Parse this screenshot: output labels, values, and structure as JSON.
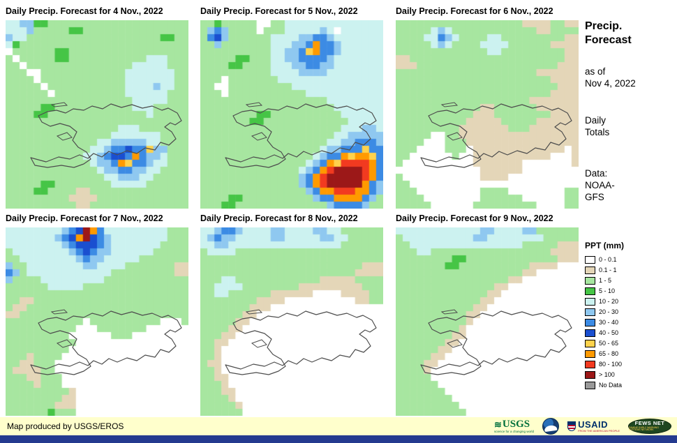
{
  "palette": {
    ".": "#FFFFFF",
    "t": "#E4D6B8",
    "g": "#A7E6A0",
    "G": "#46C546",
    "c": "#CCF2F0",
    "b": "#8FC8F0",
    "B": "#3C8BE4",
    "D": "#1A4FD0",
    "y": "#FFD24C",
    "o": "#FF9A00",
    "r": "#F23A20",
    "R": "#9C1818",
    "n": "#999999"
  },
  "panels": [
    {
      "title": "Daily Precip. Forecast for 4 Nov., 2022",
      "grid": [
        "ccbbGGgggggggggggggggggggg",
        "cccbgggggGGggggggggggggggg",
        "bccgggggggggggggggggggGGgg",
        "cGgggggggggggggggggggggggg",
        ".ggggggGGggggggggggggggggg",
        "g.gggggGGgggggggggggcccggg",
        "gg.gggggggggggggggcccccggg",
        "ggg..ggggggggggggcccccccgg",
        "gggg.ggggggggggggcccccccgg",
        "ggggg.gggggggggggccccbccgg",
        "gggggg.ggggggggggccccccggg",
        "ggggggggggggggggggcccccggg",
        "gggggGGgggggggggggcccggggg",
        "ggggGGggggggggggggggcggggg",
        "gggggggggggggggggggggggggg",
        "ggggggggggggggggcccggggggg",
        "gggggggggggggggcccccccgggg",
        "gggggggggggggccbbbbbccgggg",
        "ggggggggggggccbBBDBBybbggg",
        "gggggggggggccbBDDBoBbbcggg",
        "ggggggggggggcbbBoyBBbccggg",
        "gggggggggggggcbbBBbbccgggg",
        "ggggggggggggggccbbbccggggg",
        "gggggGGggggggggcccccgggggg",
        "ggggGGggggttgggggggggggggg",
        "gggggggggttttggggggggggggg",
        "ggggggggggttgggggggggggggg"
      ]
    },
    {
      "title": "Daily Precip. Forecast for 5 Nov., 2022",
      "grid": [
        "ggGggggg..ggcccccccccccccc",
        "gbBbgggg.gggcccccbc.cccccc",
        "gBDbggggggccccbbBBbccccccc",
        "ggbgggggggcccbbBoBBbcccccc",
        "ggggggggggccbbByoBBbcccccc",
        "gggggGGgggccbbBBBBbccccccc",
        "ggggGGggggcccbbBBbbccccccc",
        "ggggggggggccccbbbbcccccccc",
        "ggg.gggggggccccccccccccccc",
        "gg..gggggggggccccccccccccc",
        "ggg.gggggggggggccccccccccc",
        "ggggggggggggggggggcccccccc",
        "gggggggggggggggggggccccccc",
        "ggggggggGGggggggggggcccccc",
        "gggggggGGggggggggggggccccc",
        "ggggggggggggggggggggcccbbc",
        "gggggggggggggggggggccbbbbb",
        "ggggggggggggggggggccbbBBBb",
        "gggggggggggggggggcbbBBByBB",
        "ggggggggggggggggcbBBoyooyB",
        "gggggggggggggggcbBoyrrrroB",
        "ggggggggggggggcbBorRRRRroB",
        "ggggggggggggggbBorRRRRRroB",
        "ggggggggggggggbBorRRRRRoBb",
        "gggggggggggggggbBoorrrooBb",
        "ggggGGggggggggggbBBooooBbg",
        "gggGGgggggggggggggbBBBBbgg"
      ]
    },
    {
      "title": "Daily Precip. Forecast for 6 Nov., 2022",
      "grid": [
        "ggggggggggggggggggttttggtt",
        "gggggcbcggggggggggggttgggg",
        "ggggccBbcggggccgggggggggtt",
        "gggggcbcggggccccggggggtttt",
        "gggggggggggggccgggggggggtt",
        "ttggggggggggggggggggggggtt",
        "tttggggggggggggggggggggttt",
        "ggggggggggggggggggggtttttt",
        "ggggggggggggggggggggggtttt",
        "gggggggggggggggggggggggttt",
        "ggggggggggggggggggggggtttt",
        "gggggggggggggggggggttttttt",
        "ggggggggggggttggggggtttttt",
        "gggggggggggtttggggggggtttt",
        "ggggggggggtttttgggggtttttt",
        "gggggggggtttttttgggttttttt",
        "ggggg..ggttttttttttttttttt",
        "gggg...gggtttttttttttttttt",
        "ggg....ggg.ttttttttttttt.t",
        "gg......g..ttttttttttt...t",
        "g..........ttttttt.......t",
        "............tttttt........",
        "g...........tttt..........",
        "gg........................",
        "ggg.........gggg........gg",
        "gggg........gggggg......gg",
        "ggggg......ggggggggg....gg"
      ]
    },
    {
      "title": "Daily Precip. Forecast for 7 Nov., 2022",
      "grid": [
        "ccccccccbBDRoBcccccccccggg",
        "cccccccbBDoRDBbccccccccggg",
        "ccccccccbBDDDBbcccccccgggg",
        "gccccccccbBDBbbccccccggggg",
        "ggccccccccbBbbcccccggggggg",
        "bggccccccccbbccccgggggggtt",
        "Bbgccccccccccccgggggggggtt",
        "bggggcccccccccgggggggggggg",
        "ggggggcccccggggggggggggggg",
        "gggggggggggggggggggggggggg",
        "ggttgggggggggggggggggggggg",
        "gttggggggggggggggggggggggg",
        "ttgggggggggggggggggggggggg",
        "ggggggggggg.gggggggggg...g",
        "gggggggggg...ggggggg......",
        "ggggggggg......ggg........",
        "gggggggggg................",
        "ggggggggg.................",
        "gggtgggg..................",
        "ggttggg...................",
        "gttttgg...................",
        "gggttggg..................",
        "ggggtggg..................",
        "gggggggggt................",
        "ggggggggtt................",
        "gggggggttt................",
        "ggggggGggg................"
      ]
    },
    {
      "title": "Daily Precip. Forecast for 8 Nov., 2022",
      "grid": [
        "ccbBBbccccbbccccbbccgggggg",
        "cbBbbcccccbbcccccbbccggggg",
        "ccbbccccccccccccccccgggggg",
        "gccccggggggggggggggggggggg",
        "gggggggggggggggggggggggggg",
        "gggggggggggggggggggggggttt",
        "ggggggggggggggggggggggtttt",
        "gggccggggggggggggtttttgggg",
        "ggccccggggggggtttttttttggg",
        "ggccggggggtttttt....ttttgg",
        "ggggggggtttt..........ttgg",
        "gggggggttt................",
        "ggggggtt..................",
        "gggggtt...................",
        "ggggtt....................",
        "gggtt.....................",
        "ggtt......................",
        "ggt.......................",
        "ggt.......................",
        "gtt.......................",
        "ggt.......................",
        "ggtt......................",
        "gggt......................",
        "gggtt.....................",
        "ggggt.....................",
        "gggggt....................",
        "gggggg...................."
      ]
    },
    {
      "title": "Daily Precip. Forecast for 9 Nov., 2022",
      "grid": [
        "ccccccccccccbbccccbbgggggg",
        "gccccccccccbbccccccccggggg",
        "ggccccccccccccccccgggggttt",
        "gggccgggggggggggggggggtttt",
        "ggggggggGGgggggggggggggttt",
        "gggggggGGggggggggggtttt...",
        "ggggggggggggggggggtt......",
        "ggggggggggggggggtt........",
        "ggggggggggggggtt..........",
        "gggggggggggggtt...........",
        "ggggggggggggtt............",
        "gggggggggggtt.............",
        "ggggggggggtt..............",
        "ggggggggggt...............",
        "gggggggggt................",
        "ggggggggtt................",
        "gggggggtt.................",
        "ggggggtt..................",
        "gggggtt...................",
        "ggggtt....................",
        "ggggt.....................",
        "ggggg.....................",
        "gggggg....................",
        "ggggggg...................",
        "gggggggg..................",
        "ggggggggg.................",
        "gggggggggg................"
      ]
    }
  ],
  "sidebar": {
    "title_line1": "Precip.",
    "title_line2": "Forecast",
    "asof_line1": "as of",
    "asof_line2": "Nov 4, 2022",
    "totals_line1": "Daily",
    "totals_line2": "Totals",
    "data_line1": "Data:",
    "data_line2": "NOAA-",
    "data_line3": "GFS"
  },
  "legend": {
    "title": "PPT (mm)",
    "items": [
      {
        "label": "0 - 0.1",
        "color": "#FFFFFF"
      },
      {
        "label": "0.1 - 1",
        "color": "#E4D6B8"
      },
      {
        "label": "1 - 5",
        "color": "#A7E6A0"
      },
      {
        "label": "5 - 10",
        "color": "#46C546"
      },
      {
        "label": "10 - 20",
        "color": "#CCF2F0"
      },
      {
        "label": "20 - 30",
        "color": "#8FC8F0"
      },
      {
        "label": "30 - 40",
        "color": "#3C8BE4"
      },
      {
        "label": "40 - 50",
        "color": "#1A4FD0"
      },
      {
        "label": "50 - 65",
        "color": "#FFD24C"
      },
      {
        "label": "65 - 80",
        "color": "#FF9A00"
      },
      {
        "label": "80 - 100",
        "color": "#F23A20"
      },
      {
        "label": "> 100",
        "color": "#9C1818"
      },
      {
        "label": "No Data",
        "color": "#999999"
      }
    ]
  },
  "footer": {
    "credit": "Map produced by USGS/EROS",
    "logos": {
      "usgs_label": "USGS",
      "usgs_tagline": "science for a changing world",
      "usaid_label": "USAID",
      "usaid_tagline": "FROM THE AMERICAN PEOPLE",
      "fews_label": "FEWS NET",
      "fews_tagline": "FAMINE EARLY WARNING SYSTEMS NETWORK"
    }
  }
}
